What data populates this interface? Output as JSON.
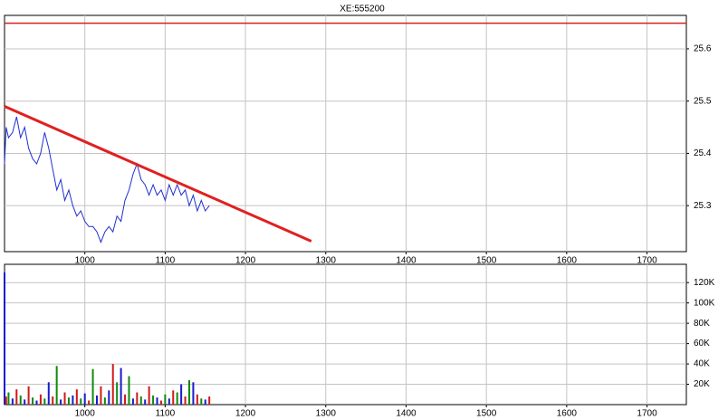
{
  "chart_data": [
    {
      "type": "line",
      "title": "XE:555200",
      "x": [
        900,
        902,
        905,
        910,
        915,
        920,
        925,
        930,
        935,
        940,
        945,
        950,
        955,
        960,
        965,
        970,
        975,
        980,
        985,
        990,
        995,
        1000,
        1005,
        1010,
        1015,
        1020,
        1025,
        1030,
        1035,
        1040,
        1045,
        1050,
        1055,
        1060,
        1065,
        1070,
        1075,
        1080,
        1085,
        1090,
        1095,
        1100,
        1105,
        1110,
        1115,
        1120,
        1125,
        1130,
        1135,
        1140,
        1145,
        1150,
        1155
      ],
      "series": [
        {
          "color": "#1f2fd0",
          "values": [
            25.38,
            25.45,
            25.43,
            25.44,
            25.47,
            25.43,
            25.45,
            25.41,
            25.39,
            25.38,
            25.4,
            25.44,
            25.41,
            25.37,
            25.33,
            25.35,
            25.31,
            25.33,
            25.3,
            25.28,
            25.29,
            25.27,
            25.26,
            25.26,
            25.25,
            25.23,
            25.25,
            25.26,
            25.25,
            25.28,
            25.27,
            25.31,
            25.33,
            25.36,
            25.38,
            25.35,
            25.34,
            25.32,
            25.34,
            25.32,
            25.33,
            25.31,
            25.34,
            25.32,
            25.34,
            25.32,
            25.33,
            25.3,
            25.32,
            25.29,
            25.31,
            25.29,
            25.3
          ]
        }
      ],
      "hline": {
        "value": 25.649,
        "color": "#d02020"
      },
      "trendline": {
        "x": [
          900,
          1282
        ],
        "y": [
          25.49,
          25.232
        ],
        "color": "#e02020"
      },
      "xlim": [
        900,
        1749
      ],
      "ylim": [
        25.212,
        25.664
      ],
      "xticks": [
        1000,
        1100,
        1200,
        1300,
        1400,
        1500,
        1600,
        1700
      ],
      "yticks": [
        25.3,
        25.4,
        25.5,
        25.6
      ],
      "grid": true
    },
    {
      "type": "bar",
      "x": [
        900,
        902,
        905,
        910,
        915,
        920,
        925,
        930,
        935,
        940,
        945,
        950,
        955,
        960,
        965,
        970,
        975,
        980,
        985,
        990,
        995,
        1000,
        1005,
        1010,
        1015,
        1020,
        1025,
        1030,
        1035,
        1040,
        1045,
        1050,
        1055,
        1060,
        1065,
        1070,
        1075,
        1080,
        1085,
        1090,
        1095,
        1100,
        1105,
        1110,
        1115,
        1120,
        1125,
        1130,
        1135,
        1140,
        1145,
        1150,
        1155
      ],
      "values": [
        130000,
        8000,
        12000,
        6000,
        15000,
        9000,
        5000,
        18000,
        7000,
        4000,
        10000,
        6000,
        22000,
        8000,
        38000,
        5000,
        12000,
        7000,
        9000,
        15000,
        6000,
        11000,
        4000,
        35000,
        9000,
        18000,
        7000,
        14000,
        40000,
        22000,
        36000,
        10000,
        28000,
        6000,
        12000,
        8000,
        5000,
        18000,
        9000,
        7000,
        4000,
        10000,
        6000,
        14000,
        12000,
        20000,
        8000,
        24000,
        22000,
        10000,
        6000,
        5000,
        8000
      ],
      "color_cycle": [
        "#1a1ad0",
        "#d01a1a",
        "#108a10"
      ],
      "xlim": [
        900,
        1749
      ],
      "ylim": [
        0,
        138000
      ],
      "xticks": [
        1000,
        1100,
        1200,
        1300,
        1400,
        1500,
        1600,
        1700
      ],
      "yticks": [
        {
          "value": 20000,
          "label": "20K"
        },
        {
          "value": 40000,
          "label": "40K"
        },
        {
          "value": 60000,
          "label": "60K"
        },
        {
          "value": 80000,
          "label": "80K"
        },
        {
          "value": 100000,
          "label": "100K"
        },
        {
          "value": 120000,
          "label": "120K"
        }
      ],
      "grid": true
    }
  ]
}
